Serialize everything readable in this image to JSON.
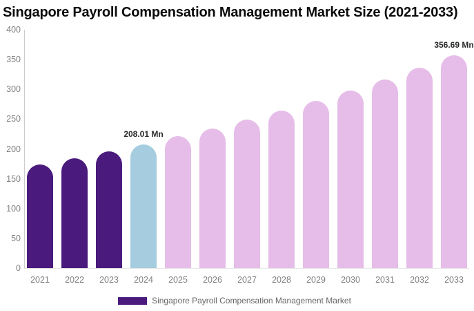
{
  "title": "Singapore Payroll Compensation Management Market Size (2021-2033)",
  "legend": {
    "label": "Singapore Payroll Compensation Management Market",
    "swatch_color": "#4A1B7D"
  },
  "colors": {
    "background": "#FFFFFF",
    "historical_bar": "#4A1B7D",
    "base_year_bar": "#A5CDDF",
    "forecast_bar": "#E6BDE8",
    "axis_line": "#CCCCCC",
    "baseline": "#E8E8E8",
    "tick_label_text": "#7F7F7F",
    "annotation_text": "#2B2B2B",
    "title_text": "#0A0A0A",
    "legend_text": "#666666"
  },
  "chart_data": {
    "type": "bar",
    "title": "Singapore Payroll Compensation Management Market Size (2021-2033)",
    "unit": "Mn",
    "categories": [
      "2021",
      "2022",
      "2023",
      "2024",
      "2025",
      "2026",
      "2027",
      "2028",
      "2029",
      "2030",
      "2031",
      "2032",
      "2033"
    ],
    "values": [
      173.7,
      184.4,
      195.9,
      208.01,
      220.9,
      234.5,
      249.0,
      264.4,
      280.8,
      298.1,
      316.5,
      336.1,
      356.69
    ],
    "bar_colors": [
      "#4A1B7D",
      "#4A1B7D",
      "#4A1B7D",
      "#A5CDDF",
      "#E6BDE8",
      "#E6BDE8",
      "#E6BDE8",
      "#E6BDE8",
      "#E6BDE8",
      "#E6BDE8",
      "#E6BDE8",
      "#E6BDE8",
      "#E6BDE8"
    ],
    "annotations": [
      {
        "category": "2024",
        "text": "208.01 Mn"
      },
      {
        "category": "2033",
        "text": "356.69 Mn"
      }
    ],
    "ylim": [
      0,
      400
    ],
    "yticks": [
      0,
      50,
      100,
      150,
      200,
      250,
      300,
      350,
      400
    ],
    "xlabel": "",
    "ylabel": "",
    "grid": false,
    "legend_position": "bottom"
  }
}
